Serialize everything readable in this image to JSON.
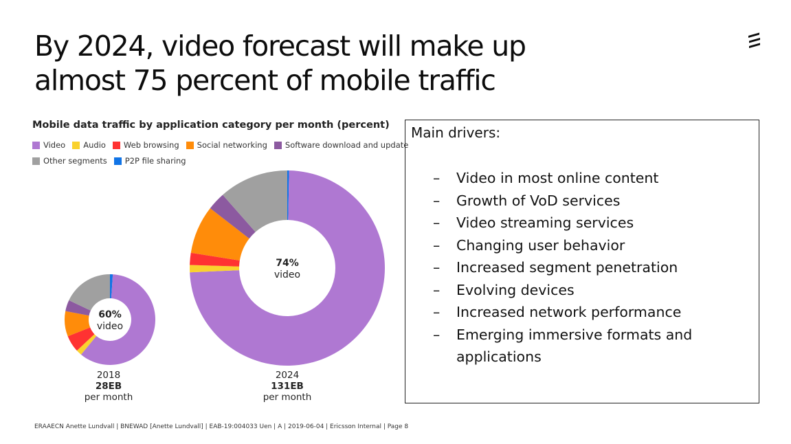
{
  "title": {
    "line1": "By 2024, video forecast will make up",
    "line2": "almost 75 percent of mobile traffic"
  },
  "logo": {
    "icon": "ericsson-logo-icon"
  },
  "chart_data": {
    "type": "pie",
    "title": "Mobile data traffic by application category per month (percent)",
    "legend": {
      "placement": "top",
      "rows": [
        [
          "Video",
          "Audio",
          "Web browsing",
          "Social networking",
          "Software download and update"
        ],
        [
          "Other segments",
          "P2P file sharing"
        ]
      ]
    },
    "categories": [
      "Video",
      "Audio",
      "Web browsing",
      "Social networking",
      "Software download and update",
      "Other segments",
      "P2P file sharing"
    ],
    "colors": {
      "Video": "#af78d2",
      "Audio": "#fad22d",
      "Web browsing": "#ff3232",
      "Social networking": "#ff8c0a",
      "Software download and update": "#8c5aa0",
      "Other segments": "#a0a0a0",
      "P2P file sharing": "#1174e6"
    },
    "series": [
      {
        "name": "2018",
        "volume": "28EB",
        "volume_unit": "per month",
        "center_value": "60%",
        "center_label": "video",
        "values": [
          60,
          2,
          6,
          9,
          4,
          18,
          1
        ]
      },
      {
        "name": "2024",
        "volume": "131EB",
        "volume_unit": "per month",
        "center_value": "74%",
        "center_label": "video",
        "values": [
          74,
          1.2,
          2,
          8,
          3,
          11.5,
          0.3
        ]
      }
    ]
  },
  "drivers": {
    "heading": "Main drivers:",
    "dash": "–",
    "items": [
      "Video in most online content",
      "Growth of VoD services",
      "Video streaming services",
      "Changing user behavior",
      "Increased segment penetration",
      "Evolving devices",
      "Increased network performance",
      "Emerging immersive formats and applications"
    ]
  },
  "footer": "ERAAECN Anette Lundvall  |  BNEWAD [Anette Lundvall]  |  EAB-19:004033 Uen  |  A  |  2019-06-04  |  Ericsson Internal  |  Page 8"
}
